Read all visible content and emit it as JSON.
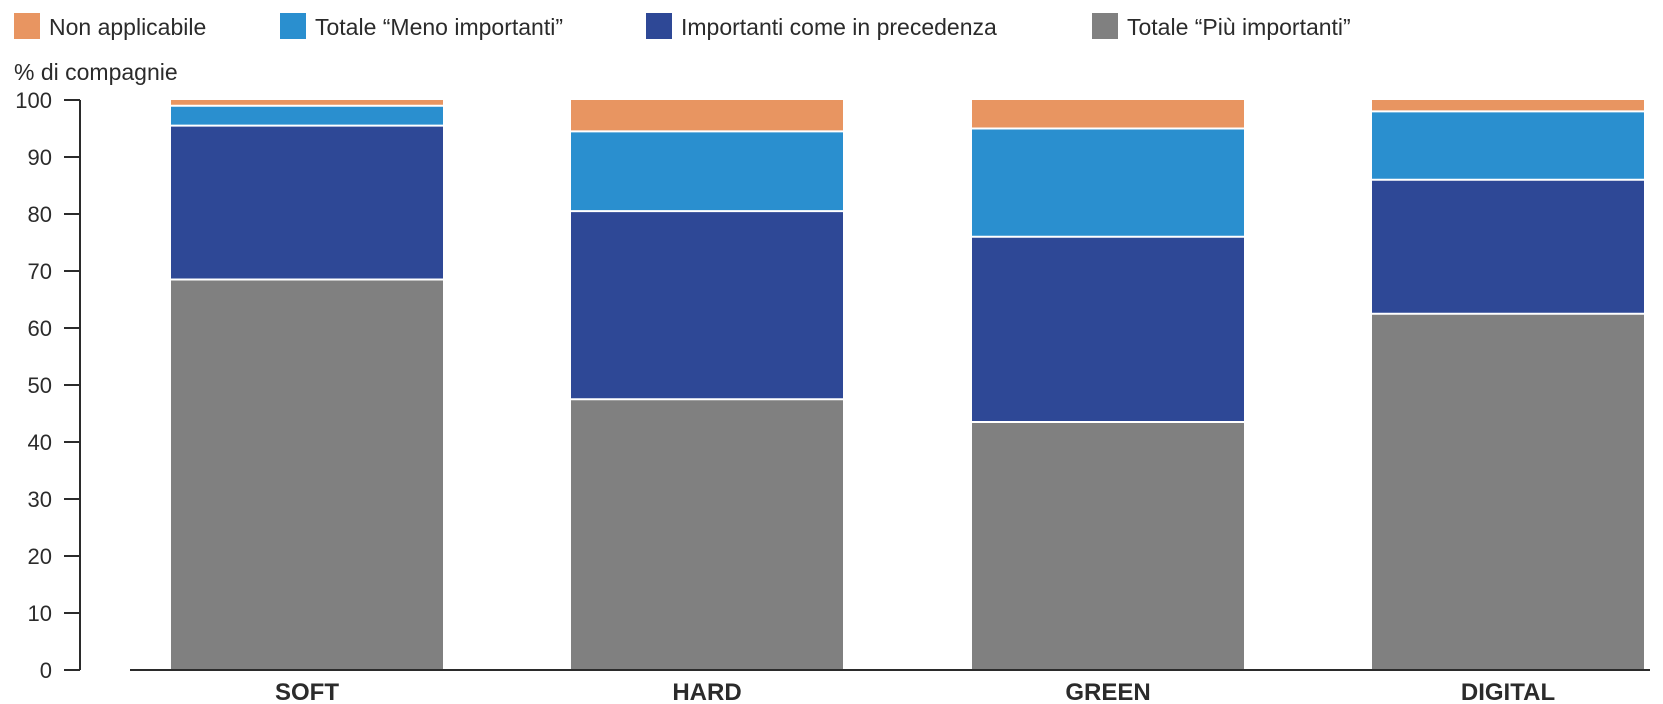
{
  "chart_data": {
    "type": "bar",
    "stacked": true,
    "ylabel": "% di compagnie",
    "xlabel": "",
    "ylim": [
      0,
      100
    ],
    "yticks": [
      0,
      10,
      20,
      30,
      40,
      50,
      60,
      70,
      80,
      90,
      100
    ],
    "categories": [
      "SOFT",
      "HARD",
      "GREEN",
      "DIGITAL"
    ],
    "legend_position": "top",
    "series": [
      {
        "name": "Totale “Più importanti”",
        "color": "#808080",
        "values": [
          68.5,
          47.5,
          43.5,
          62.5
        ]
      },
      {
        "name": "Importanti come in precedenza",
        "color": "#2e4896",
        "values": [
          27,
          33,
          32.5,
          23.5
        ]
      },
      {
        "name": "Totale “Meno importanti”",
        "color": "#2a8fcf",
        "values": [
          3.5,
          14,
          19,
          12
        ]
      },
      {
        "name": "Non applicabile",
        "color": "#e89561",
        "values": [
          1,
          5.5,
          5,
          2
        ]
      }
    ],
    "legend_order": [
      "Non applicabile",
      "Totale “Meno importanti”",
      "Importanti come in precedenza",
      "Totale “Più importanti”"
    ]
  }
}
